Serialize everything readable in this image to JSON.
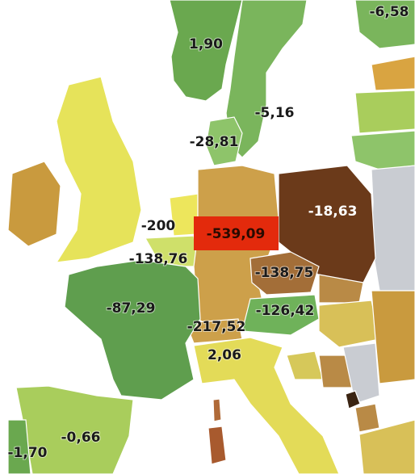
{
  "labels": [
    {
      "text": "-6,58"
    },
    {
      "text": "1,90"
    },
    {
      "text": "-5,16"
    },
    {
      "text": "-28,81"
    },
    {
      "text": "-200"
    },
    {
      "text": "-539,09"
    },
    {
      "text": "-18,63"
    },
    {
      "text": "-138,76"
    },
    {
      "text": "-138,75"
    },
    {
      "text": "-87,29"
    },
    {
      "text": "-126,42"
    },
    {
      "text": "-217,52"
    },
    {
      "text": "2,06"
    },
    {
      "text": "-0,66"
    },
    {
      "text": "-1,70"
    }
  ]
}
